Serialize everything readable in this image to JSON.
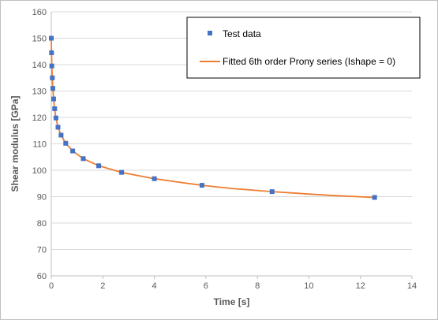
{
  "chart_data": {
    "type": "scatter",
    "title": "",
    "xlabel": "Time [s]",
    "ylabel": "Shear modulus [GPa]",
    "xlim": [
      0,
      14
    ],
    "ylim": [
      60,
      160
    ],
    "xticks": [
      0,
      2,
      4,
      6,
      8,
      10,
      12,
      14
    ],
    "yticks": [
      60,
      70,
      80,
      90,
      100,
      110,
      120,
      130,
      140,
      150,
      160
    ],
    "grid": "horizontal",
    "legend_position": "top-right",
    "series": [
      {
        "name": "Test data",
        "kind": "marker",
        "color": "#4472C4",
        "x": [
          0.0,
          0.01,
          0.02,
          0.04,
          0.06,
          0.09,
          0.13,
          0.18,
          0.26,
          0.38,
          0.56,
          0.83,
          1.24,
          1.84,
          2.73,
          4.0,
          5.85,
          8.57,
          12.55
        ],
        "y": [
          150.0,
          144.5,
          139.5,
          135.0,
          131.0,
          127.0,
          123.3,
          119.8,
          116.3,
          113.3,
          110.2,
          107.3,
          104.4,
          101.7,
          99.2,
          96.8,
          94.3,
          91.9,
          89.7
        ]
      },
      {
        "name": "Fitted 6th order Prony series (Ishape = 0)",
        "kind": "line",
        "color": "#ED7D31",
        "x": [
          0.0,
          0.01,
          0.02,
          0.04,
          0.06,
          0.09,
          0.13,
          0.18,
          0.26,
          0.38,
          0.56,
          0.83,
          1.24,
          1.84,
          2.73,
          4.0,
          5.0,
          5.85,
          7.0,
          8.57,
          10.0,
          11.0,
          12.55
        ],
        "y": [
          150.0,
          144.5,
          139.5,
          135.0,
          131.0,
          127.0,
          123.3,
          119.8,
          116.3,
          113.3,
          110.2,
          107.3,
          104.4,
          101.7,
          99.2,
          96.8,
          95.4,
          94.3,
          93.1,
          91.9,
          91.0,
          90.4,
          89.7
        ]
      }
    ]
  }
}
